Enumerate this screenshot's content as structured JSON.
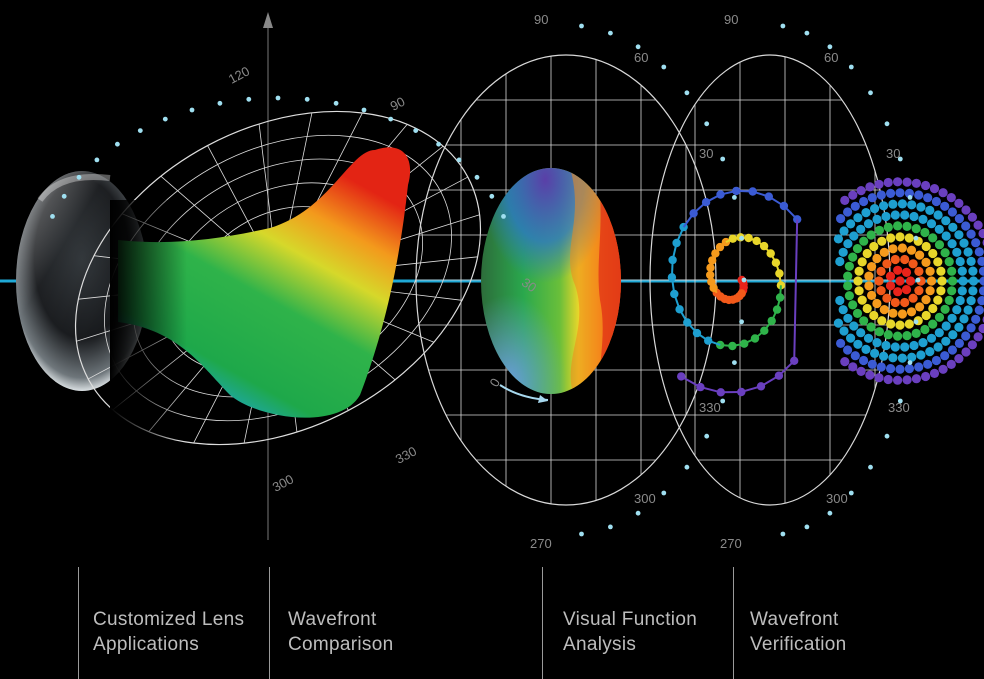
{
  "polar_labels": {
    "left_chart": [
      "120",
      "90",
      "30",
      "0",
      "300",
      "330"
    ],
    "middle_chart": [
      "90",
      "60",
      "270",
      "300"
    ],
    "right_chart": [
      "90",
      "60",
      "30",
      "330",
      "270",
      "300"
    ]
  },
  "captions": [
    {
      "line1": "Customized Lens",
      "line2": "Applications"
    },
    {
      "line1": "Wavefront",
      "line2": "Comparison"
    },
    {
      "line1": "Visual Function",
      "line2": "Analysis"
    },
    {
      "line1": "Wavefront",
      "line2": "Verification"
    }
  ],
  "colors": {
    "background": "#000000",
    "axis_line": "#1fa9d6",
    "grid": "#e6e6e6",
    "caption_text": "#bdbdbd",
    "dot": "#9fdff0"
  }
}
